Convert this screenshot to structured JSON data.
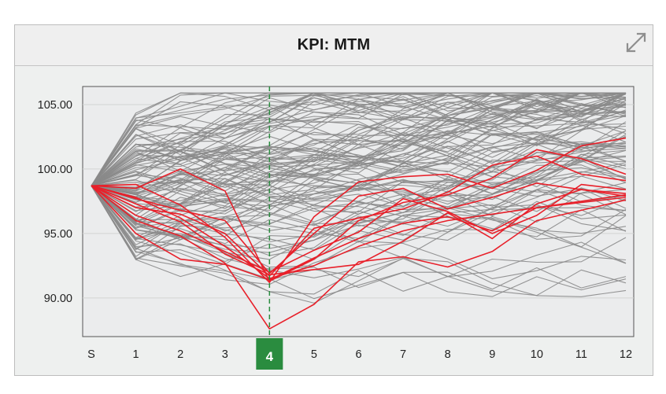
{
  "panel": {
    "title": "KPI: MTM",
    "expand_icon": "expand-icon"
  },
  "colors": {
    "background_series": "#8a8a8a",
    "highlight_series": "#e8202a",
    "marker": "#2a8c3f",
    "marker_text": "#ffffff"
  },
  "chart_data": {
    "type": "line",
    "title": "KPI: MTM",
    "xlabel": "",
    "ylabel": "",
    "categories": [
      "S",
      "1",
      "2",
      "3",
      "4",
      "5",
      "6",
      "7",
      "8",
      "9",
      "10",
      "11",
      "12"
    ],
    "ylim": [
      87.0,
      106.4
    ],
    "yticks": [
      90.0,
      95.0,
      100.0,
      105.0
    ],
    "ytick_labels": [
      "90.00",
      "95.00",
      "100.00",
      "105.00"
    ],
    "grid": true,
    "highlighted_category": "4",
    "start_value": 98.7,
    "grey_series_count": 110,
    "highlight_series": [
      {
        "values": [
          98.7,
          97.8,
          96.2,
          94.0,
          91.5,
          92.5,
          94.0,
          95.2,
          96.0,
          96.5,
          97.0,
          97.5,
          98.0
        ]
      },
      {
        "values": [
          98.7,
          98.5,
          100.0,
          98.3,
          91.3,
          93.0,
          96.0,
          97.4,
          98.0,
          99.3,
          101.5,
          100.8,
          99.6
        ]
      },
      {
        "values": [
          98.7,
          98.8,
          97.2,
          94.7,
          91.2,
          96.3,
          99.0,
          99.4,
          99.6,
          98.5,
          99.9,
          101.8,
          102.4
        ]
      },
      {
        "values": [
          98.7,
          97.3,
          95.9,
          93.4,
          91.8,
          92.2,
          92.6,
          94.4,
          96.6,
          94.6,
          97.3,
          98.4,
          98.1
        ]
      },
      {
        "values": [
          98.7,
          96.0,
          94.8,
          92.7,
          87.6,
          89.5,
          92.8,
          93.2,
          92.4,
          93.6,
          96.0,
          96.8,
          97.6
        ]
      },
      {
        "values": [
          98.7,
          97.0,
          96.5,
          95.0,
          91.7,
          95.4,
          96.2,
          96.9,
          98.2,
          100.3,
          101.0,
          99.6,
          99.1
        ]
      },
      {
        "values": [
          98.7,
          96.4,
          95.2,
          93.6,
          92.0,
          93.7,
          95.1,
          97.7,
          96.7,
          95.0,
          96.4,
          98.8,
          98.4
        ]
      },
      {
        "values": [
          98.7,
          95.0,
          93.0,
          92.6,
          91.4,
          93.1,
          94.6,
          95.8,
          96.3,
          95.2,
          97.0,
          97.4,
          97.8
        ]
      },
      {
        "values": [
          98.7,
          97.7,
          96.8,
          96.0,
          91.9,
          95.0,
          97.9,
          98.5,
          96.9,
          97.8,
          98.9,
          98.4,
          97.9
        ]
      }
    ]
  }
}
